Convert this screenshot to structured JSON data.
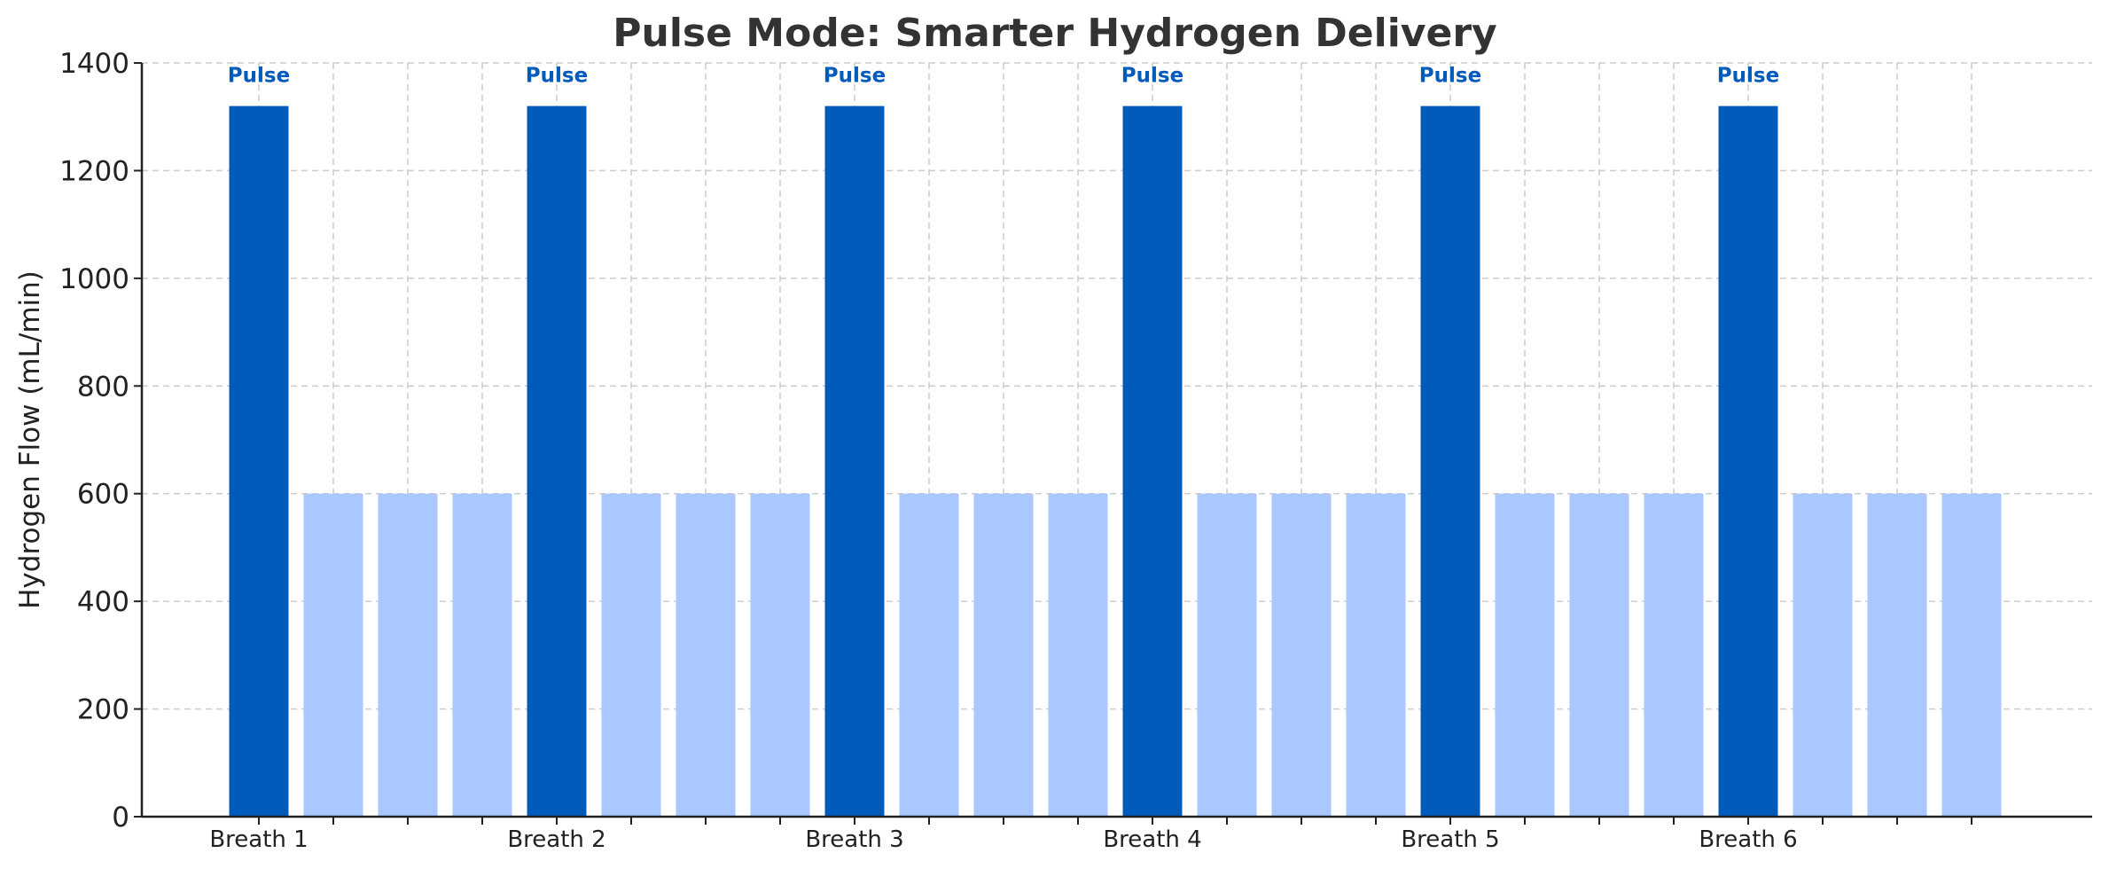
{
  "chart_data": {
    "type": "bar",
    "title": "Pulse Mode: Smarter Hydrogen Delivery",
    "xlabel": "",
    "ylabel": "Hydrogen Flow (mL/min)",
    "ylim": [
      0,
      1400
    ],
    "yticks": [
      0,
      200,
      400,
      600,
      800,
      1000,
      1200,
      1400
    ],
    "x_tick_labels": [
      "Breath 1",
      "Breath 2",
      "Breath 3",
      "Breath 4",
      "Breath 5",
      "Breath 6"
    ],
    "values": [
      1320,
      600,
      600,
      600,
      1320,
      600,
      600,
      600,
      1320,
      600,
      600,
      600,
      1320,
      600,
      600,
      600,
      1320,
      600,
      600,
      600,
      1320,
      600,
      600,
      600
    ],
    "pulse_annotation": "Pulse",
    "grid": true,
    "colors": {
      "pulse": "#005bbb",
      "baseline": "#a8c8ff",
      "annotation": "#005bbb"
    }
  }
}
